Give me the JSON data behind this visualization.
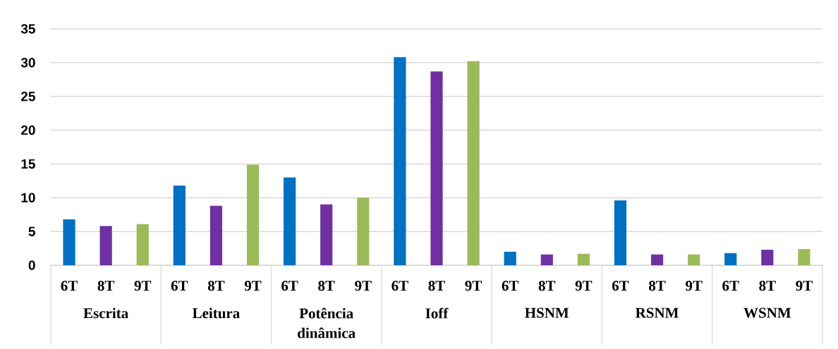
{
  "chart_data": {
    "type": "bar",
    "categories": [
      "Escrita",
      "Leitura",
      "Potência dinâmica",
      "Ioff",
      "HSNM",
      "RSNM",
      "WSNM"
    ],
    "series": [
      {
        "name": "6T",
        "color": "#0070c0",
        "values": [
          6.8,
          11.8,
          13.0,
          30.8,
          2.0,
          9.6,
          1.8
        ]
      },
      {
        "name": "8T",
        "color": "#7030a0",
        "values": [
          5.8,
          8.8,
          9.0,
          28.7,
          1.6,
          1.6,
          2.3
        ]
      },
      {
        "name": "9T",
        "color": "#9bbb59",
        "values": [
          6.1,
          14.9,
          10.0,
          30.2,
          1.7,
          1.6,
          2.4
        ]
      }
    ],
    "ylim": [
      0,
      35
    ],
    "yticks": [
      0,
      5,
      10,
      15,
      20,
      25,
      30,
      35
    ],
    "grid": "y"
  }
}
